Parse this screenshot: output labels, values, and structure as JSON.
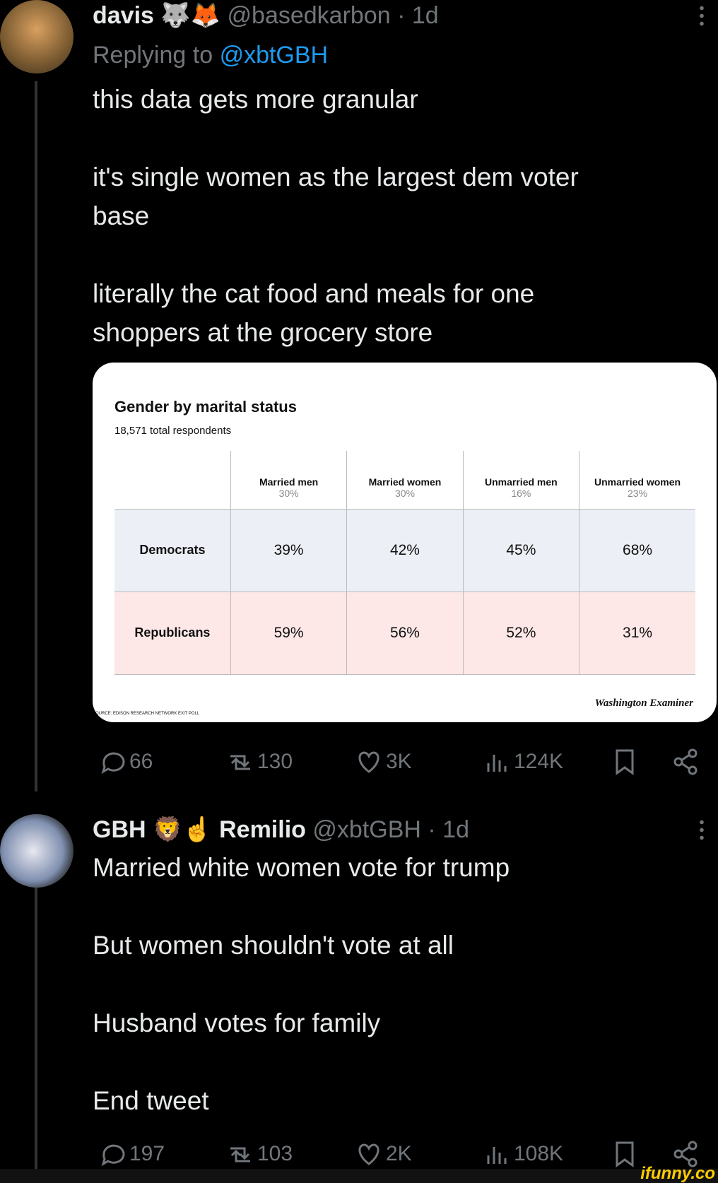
{
  "separator": "·",
  "tweets": [
    {
      "name": "davis 🐺🦊",
      "handle": "@basedkarbon",
      "time": "1d",
      "replying_to_label": "Replying to",
      "replying_to": "@xbtGBH",
      "paragraphs": [
        [
          "this data gets more granular"
        ],
        [
          "it's single women as the largest dem voter",
          "base"
        ],
        [
          "literally the cat food and meals for one",
          "shoppers at the grocery store"
        ]
      ],
      "stats": {
        "replies": "66",
        "reposts": "130",
        "likes": "3K",
        "views": "124K"
      }
    },
    {
      "name": "GBH 🦁☝ Remilio",
      "handle": "@xbtGBH",
      "time": "1d",
      "paragraphs": [
        [
          "Married white women vote for trump"
        ],
        [
          "But women shouldn't vote at all"
        ],
        [
          "Husband votes for family"
        ],
        [
          "End tweet"
        ]
      ],
      "stats": {
        "replies": "197",
        "reposts": "103",
        "likes": "2K",
        "views": "108K"
      }
    }
  ],
  "embedded_table": {
    "title": "Gender by marital status",
    "subtitle": "18,571 total respondents",
    "columns": [
      {
        "name": "Married men",
        "share": "30%"
      },
      {
        "name": "Married women",
        "share": "30%"
      },
      {
        "name": "Unmarried men",
        "share": "16%"
      },
      {
        "name": "Unmarried women",
        "share": "23%"
      }
    ],
    "rows": [
      {
        "label": "Democrats",
        "values": [
          "39%",
          "42%",
          "45%",
          "68%"
        ]
      },
      {
        "label": "Republicans",
        "values": [
          "59%",
          "56%",
          "52%",
          "31%"
        ]
      }
    ],
    "source": "SOURCE: EDISON RESEARCH NETWORK EXIT POLL",
    "logo": "Washington Examiner"
  },
  "watermark": "ifunny.co"
}
